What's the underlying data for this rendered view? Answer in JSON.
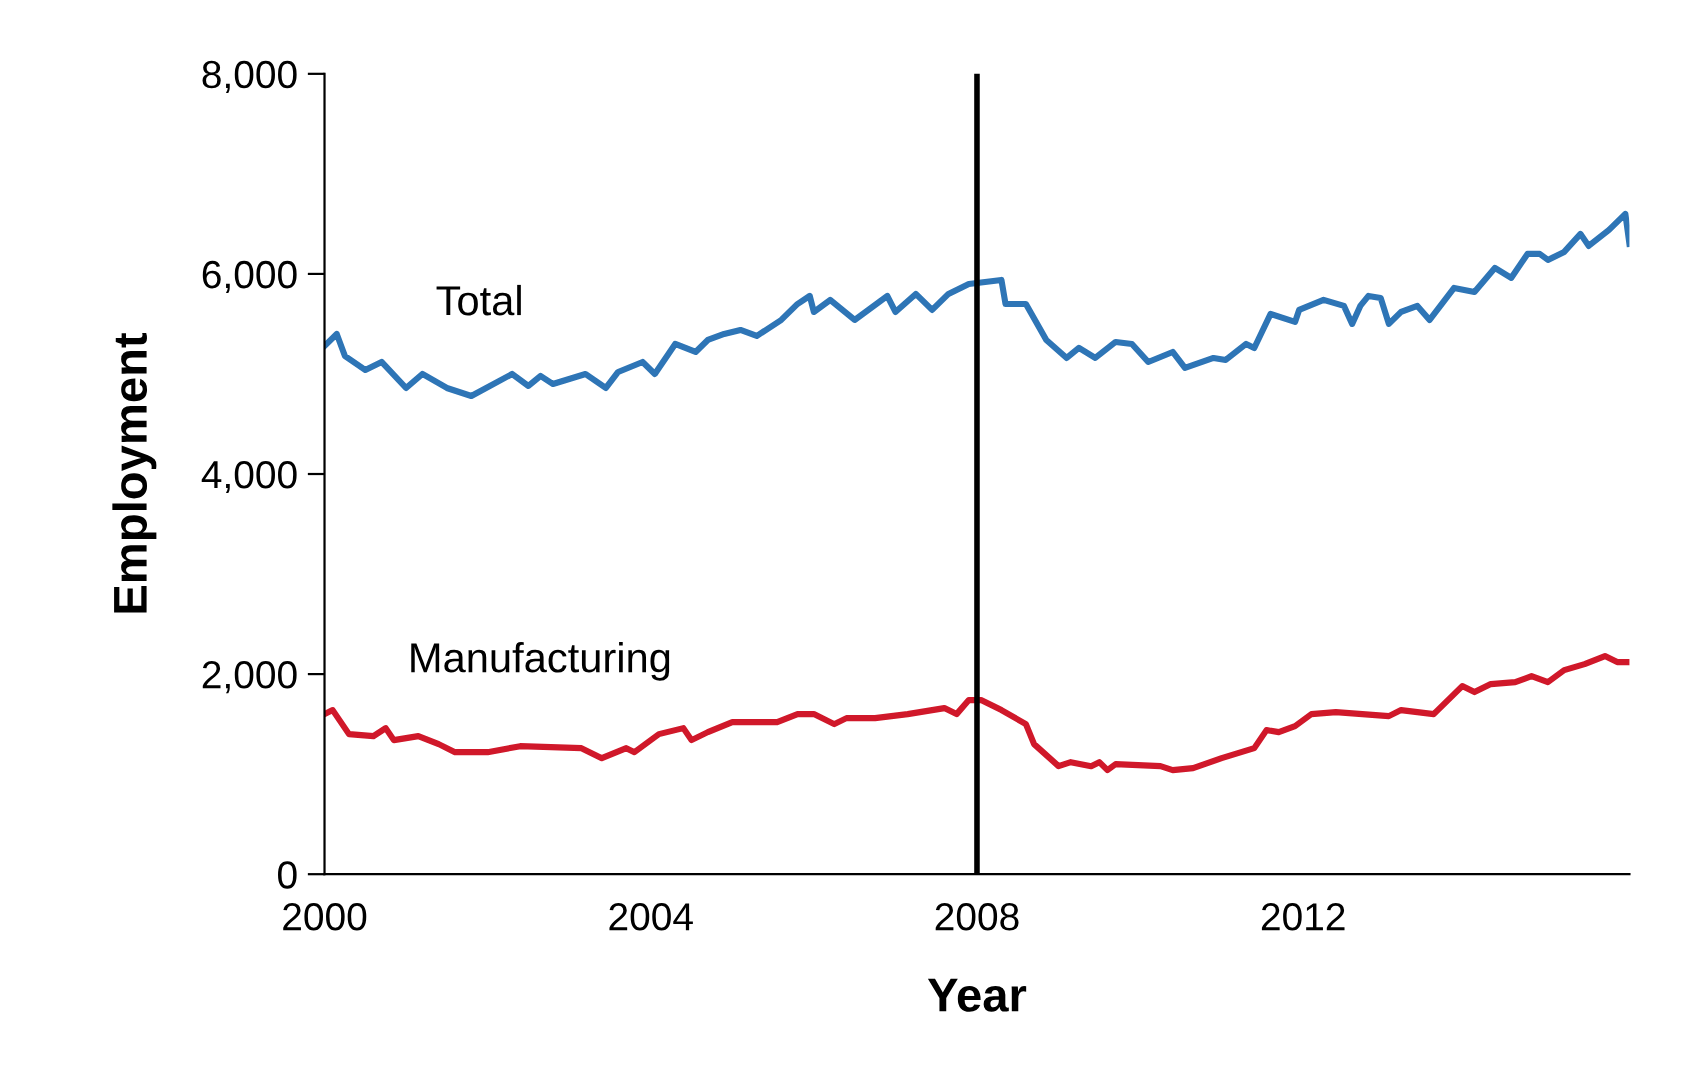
{
  "chart_data": {
    "type": "line",
    "xlabel": "Year",
    "ylabel": "Employment",
    "xlim": [
      2000,
      2016
    ],
    "xticks": [
      2000,
      2004,
      2008,
      2012
    ],
    "ylim": [
      0,
      8000
    ],
    "yticks": [
      0,
      {
        "value": 2000,
        "label": "2,000"
      },
      {
        "value": 4000,
        "label": "4,000"
      },
      {
        "value": 6000,
        "label": "6,000"
      },
      {
        "value": 8000,
        "label": "8,000"
      }
    ],
    "grid": false,
    "legend": false,
    "line_style": "solid",
    "marker": "none",
    "ref_lines": [
      {
        "axis": "x",
        "value": 2008,
        "color": "#000000",
        "line_style": "solid"
      }
    ],
    "series": [
      {
        "name": "Total",
        "color": "#2e75b6",
        "x": [
          2000.0,
          2000.15,
          2000.25,
          2000.5,
          2000.7,
          2001.0,
          2001.2,
          2001.5,
          2001.8,
          2002.3,
          2002.5,
          2002.65,
          2002.8,
          2003.2,
          2003.45,
          2003.6,
          2003.9,
          2004.05,
          2004.3,
          2004.55,
          2004.7,
          2004.9,
          2005.1,
          2005.3,
          2005.6,
          2005.8,
          2005.95,
          2006.0,
          2006.2,
          2006.5,
          2006.9,
          2007.0,
          2007.25,
          2007.45,
          2007.65,
          2007.9,
          2008.3,
          2008.35,
          2008.6,
          2008.85,
          2009.1,
          2009.25,
          2009.45,
          2009.7,
          2009.9,
          2010.1,
          2010.4,
          2010.55,
          2010.9,
          2011.05,
          2011.3,
          2011.4,
          2011.6,
          2011.9,
          2011.95,
          2012.25,
          2012.5,
          2012.6,
          2012.7,
          2012.8,
          2012.95,
          2013.05,
          2013.2,
          2013.4,
          2013.55,
          2013.85,
          2014.1,
          2014.35,
          2014.55,
          2014.75,
          2014.9,
          2015.0,
          2015.2,
          2015.4,
          2015.5,
          2015.75,
          2015.95,
          2016.0
        ],
        "values": [
          5280,
          5400,
          5180,
          5040,
          5120,
          4860,
          5000,
          4860,
          4780,
          5000,
          4880,
          4980,
          4900,
          5000,
          4860,
          5020,
          5120,
          5000,
          5300,
          5220,
          5340,
          5400,
          5440,
          5380,
          5540,
          5700,
          5780,
          5620,
          5740,
          5540,
          5780,
          5620,
          5800,
          5640,
          5800,
          5900,
          5940,
          5700,
          5700,
          5340,
          5160,
          5260,
          5160,
          5320,
          5300,
          5120,
          5220,
          5060,
          5160,
          5140,
          5300,
          5260,
          5600,
          5520,
          5640,
          5740,
          5680,
          5500,
          5680,
          5780,
          5760,
          5500,
          5620,
          5680,
          5540,
          5860,
          5820,
          6060,
          5960,
          6200,
          6200,
          6140,
          6220,
          6400,
          6280,
          6440,
          6600,
          6300
        ]
      },
      {
        "name": "Manufacturing",
        "color": "#d0182a",
        "x": [
          2000.0,
          2000.1,
          2000.3,
          2000.6,
          2000.75,
          2000.85,
          2001.15,
          2001.4,
          2001.6,
          2002.0,
          2002.4,
          2003.15,
          2003.4,
          2003.7,
          2003.8,
          2004.1,
          2004.4,
          2004.5,
          2004.7,
          2005.0,
          2005.55,
          2005.8,
          2006.0,
          2006.25,
          2006.4,
          2006.75,
          2007.15,
          2007.6,
          2007.75,
          2007.9,
          2008.05,
          2008.3,
          2008.6,
          2008.7,
          2009.0,
          2009.15,
          2009.4,
          2009.5,
          2009.6,
          2009.7,
          2010.25,
          2010.4,
          2010.65,
          2011.0,
          2011.4,
          2011.55,
          2011.7,
          2011.9,
          2012.1,
          2012.4,
          2013.05,
          2013.2,
          2013.6,
          2013.85,
          2013.95,
          2014.1,
          2014.3,
          2014.6,
          2014.8,
          2015.0,
          2015.2,
          2015.45,
          2015.7,
          2015.85,
          2016.0
        ],
        "values": [
          1600,
          1640,
          1400,
          1380,
          1460,
          1340,
          1380,
          1300,
          1220,
          1220,
          1280,
          1260,
          1160,
          1260,
          1220,
          1400,
          1460,
          1340,
          1420,
          1520,
          1520,
          1600,
          1600,
          1500,
          1560,
          1560,
          1600,
          1660,
          1600,
          1740,
          1740,
          1640,
          1500,
          1300,
          1080,
          1120,
          1080,
          1120,
          1040,
          1100,
          1080,
          1040,
          1060,
          1160,
          1260,
          1440,
          1420,
          1480,
          1600,
          1620,
          1580,
          1640,
          1600,
          1800,
          1880,
          1820,
          1900,
          1920,
          1980,
          1920,
          2040,
          2100,
          2180,
          2120,
          2120
        ]
      }
    ]
  }
}
